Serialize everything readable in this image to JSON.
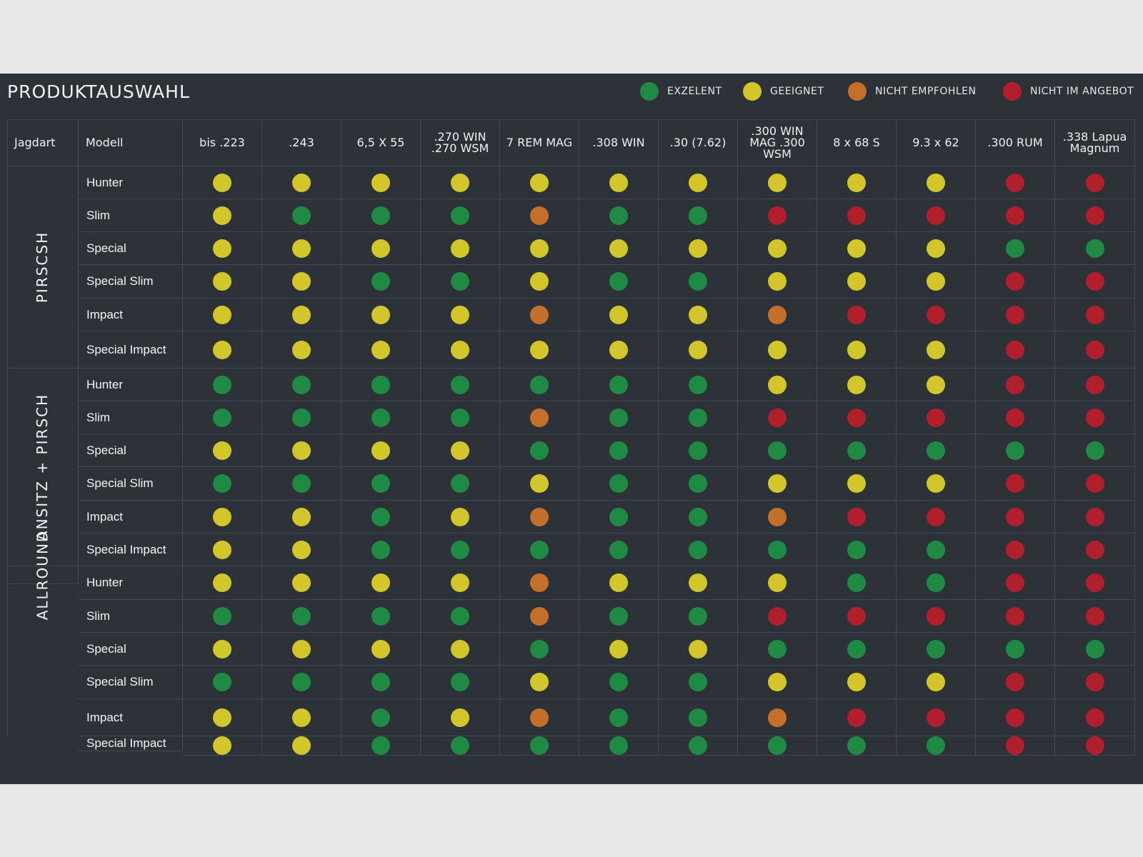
{
  "title": "PRODUKTAUSWAHL",
  "legend": [
    {
      "label": "EXZELENT",
      "color": "#1f8a43"
    },
    {
      "label": "GEEIGNET",
      "color": "#d3c62a"
    },
    {
      "label": "NICHT EMPFOHLEN",
      "color": "#c4702a"
    },
    {
      "label": "NICHT IM ANGEBOT",
      "color": "#b01f2b"
    }
  ],
  "chart_data": {
    "type": "table",
    "columns": [
      "Jagdart",
      "Modell",
      "bis .223",
      ".243",
      "6,5 X 55",
      ".270 WIN .270 WSM",
      "7 REM MAG",
      ".308 WIN",
      ".30 (7.62)",
      ".300 WIN MAG .300 WSM",
      "8 x 68 S",
      "9.3 x 62",
      ".300 RUM",
      ".338 Lapua Magnum"
    ],
    "rating_scale": {
      "G": "EXZELENT",
      "Y": "GEEIGNET",
      "O": "NICHT EMPFOHLEN",
      "R": "NICHT IM ANGEBOT"
    },
    "colors": {
      "G": "#1f8a43",
      "Y": "#d3c62a",
      "O": "#c4702a",
      "R": "#b01f2b"
    },
    "groups": [
      {
        "name": "PIRSCSH",
        "rows": [
          {
            "modell": "Hunter",
            "ratings": [
              "Y",
              "Y",
              "Y",
              "Y",
              "Y",
              "Y",
              "Y",
              "Y",
              "Y",
              "Y",
              "R",
              "R"
            ]
          },
          {
            "modell": "Slim",
            "ratings": [
              "Y",
              "G",
              "G",
              "G",
              "O",
              "G",
              "G",
              "R",
              "R",
              "R",
              "R",
              "R"
            ]
          },
          {
            "modell": "Special",
            "ratings": [
              "Y",
              "Y",
              "Y",
              "Y",
              "Y",
              "Y",
              "Y",
              "Y",
              "Y",
              "Y",
              "G",
              "G"
            ]
          },
          {
            "modell": "Special Slim",
            "ratings": [
              "Y",
              "Y",
              "G",
              "G",
              "Y",
              "G",
              "G",
              "Y",
              "Y",
              "Y",
              "R",
              "R"
            ]
          },
          {
            "modell": "Impact",
            "ratings": [
              "Y",
              "Y",
              "Y",
              "Y",
              "O",
              "Y",
              "Y",
              "O",
              "R",
              "R",
              "R",
              "R"
            ]
          },
          {
            "modell": "Special Impact",
            "ratings": [
              "Y",
              "Y",
              "Y",
              "Y",
              "Y",
              "Y",
              "Y",
              "Y",
              "Y",
              "Y",
              "R",
              "R"
            ]
          }
        ]
      },
      {
        "name": "ANSITZ + PIRSCH",
        "rows": [
          {
            "modell": "Hunter",
            "ratings": [
              "G",
              "G",
              "G",
              "G",
              "G",
              "G",
              "G",
              "Y",
              "Y",
              "Y",
              "R",
              "R"
            ]
          },
          {
            "modell": "Slim",
            "ratings": [
              "G",
              "G",
              "G",
              "G",
              "O",
              "G",
              "G",
              "R",
              "R",
              "R",
              "R",
              "R"
            ]
          },
          {
            "modell": "Special",
            "ratings": [
              "Y",
              "Y",
              "Y",
              "Y",
              "G",
              "G",
              "G",
              "G",
              "G",
              "G",
              "G",
              "G"
            ]
          },
          {
            "modell": "Special Slim",
            "ratings": [
              "G",
              "G",
              "G",
              "G",
              "Y",
              "G",
              "G",
              "Y",
              "Y",
              "Y",
              "R",
              "R"
            ]
          },
          {
            "modell": "Impact",
            "ratings": [
              "Y",
              "Y",
              "G",
              "Y",
              "O",
              "G",
              "G",
              "O",
              "R",
              "R",
              "R",
              "R"
            ]
          },
          {
            "modell": "Special Impact",
            "ratings": [
              "Y",
              "Y",
              "G",
              "G",
              "G",
              "G",
              "G",
              "G",
              "G",
              "G",
              "R",
              "R"
            ]
          }
        ]
      },
      {
        "name": "ALLROUND",
        "rows": [
          {
            "modell": "Hunter",
            "ratings": [
              "Y",
              "Y",
              "Y",
              "Y",
              "O",
              "Y",
              "Y",
              "Y",
              "G",
              "G",
              "R",
              "R"
            ]
          },
          {
            "modell": "Slim",
            "ratings": [
              "G",
              "G",
              "G",
              "G",
              "O",
              "G",
              "G",
              "R",
              "R",
              "R",
              "R",
              "R"
            ]
          },
          {
            "modell": "Special",
            "ratings": [
              "Y",
              "Y",
              "Y",
              "Y",
              "G",
              "Y",
              "Y",
              "G",
              "G",
              "G",
              "G",
              "G"
            ]
          },
          {
            "modell": "Special Slim",
            "ratings": [
              "G",
              "G",
              "G",
              "G",
              "Y",
              "G",
              "G",
              "Y",
              "Y",
              "Y",
              "R",
              "R"
            ]
          },
          {
            "modell": "Impact",
            "ratings": [
              "Y",
              "Y",
              "G",
              "Y",
              "O",
              "G",
              "G",
              "O",
              "R",
              "R",
              "R",
              "R"
            ]
          },
          {
            "modell": "Special Impact",
            "ratings": [
              "Y",
              "Y",
              "G",
              "G",
              "G",
              "G",
              "G",
              "G",
              "G",
              "G",
              "R",
              "R"
            ]
          }
        ]
      }
    ]
  }
}
